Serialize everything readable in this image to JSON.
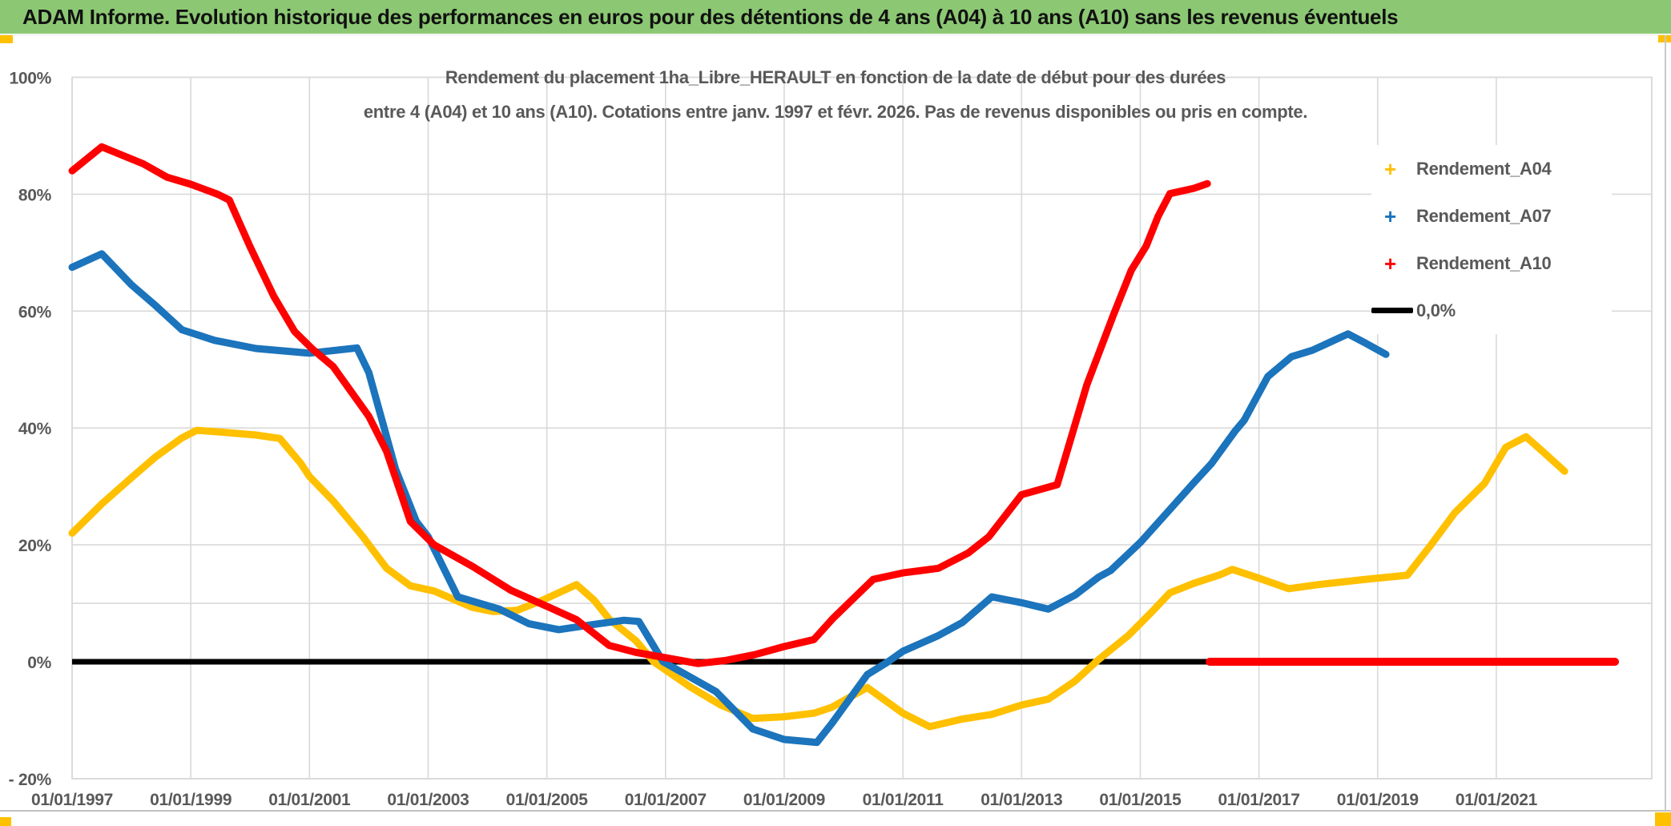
{
  "header": {
    "title": "ADAM Informe. Evolution historique des performances en euros pour des détentions de 4 ans (A04) à 10 ans (A10) sans les revenus éventuels",
    "bg_color": "#8CC873"
  },
  "chart": {
    "title_line1": "Rendement du placement 1ha_Libre_HERAULT en fonction de la date de début pour des durées",
    "title_line2": "entre 4 (A04) et 10 ans (A10). Cotations entre janv. 1997 et févr. 2026. Pas de revenus disponibles ou pris en compte.",
    "legend": {
      "items": [
        {
          "label": "Rendement_A04",
          "color": "#FFC000",
          "marker": "plus",
          "marker_glyph": "+"
        },
        {
          "label": "Rendement_A07",
          "color": "#1B74BC",
          "marker": "plus",
          "marker_glyph": "+"
        },
        {
          "label": "Rendement_A10",
          "color": "#FF0000",
          "marker": "plus",
          "marker_glyph": "+"
        },
        {
          "label": "0,0%",
          "color": "#000000",
          "marker": "line",
          "marker_glyph": ""
        }
      ]
    }
  },
  "chart_data": {
    "type": "line",
    "title": "Rendement du placement 1ha_Libre_HERAULT en fonction de la date de début pour des durées entre 4 (A04) et 10 ans (A10). Cotations entre janv. 1997 et févr. 2026. Pas de revenus disponibles ou pris en compte.",
    "x_axis": {
      "min": 1997.0,
      "max": 2023.6,
      "tick_years": [
        1997,
        1999,
        2001,
        2003,
        2005,
        2007,
        2009,
        2011,
        2013,
        2015,
        2017,
        2019,
        2021
      ],
      "tick_labels": [
        "01/01/1997",
        "01/01/1999",
        "01/01/2001",
        "01/01/2003",
        "01/01/2005",
        "01/01/2007",
        "01/01/2009",
        "01/01/2011",
        "01/01/2013",
        "01/01/2015",
        "01/01/2017",
        "01/01/2019",
        "01/01/2021"
      ]
    },
    "y_axis": {
      "min": -20,
      "max": 100,
      "tick_values": [
        100,
        80,
        60,
        40,
        20,
        0,
        -20
      ],
      "tick_labels": [
        "100%",
        "80%",
        "60%",
        "40%",
        "20%",
        "0%",
        "- 20%"
      ],
      "gridline_values": [
        100,
        80,
        60,
        40,
        20,
        10,
        -20
      ],
      "grid_on": true
    },
    "zero_line": {
      "label": "0,0%",
      "color": "#000000",
      "x_start": 1997.0,
      "x_end": 2016.2,
      "value": 0
    },
    "series": [
      {
        "name": "Rendement_A04",
        "color": "#FFC000",
        "points": [
          [
            1997.0,
            22
          ],
          [
            1997.5,
            27
          ],
          [
            1998.0,
            31.5
          ],
          [
            1998.4,
            35
          ],
          [
            1998.85,
            38.3
          ],
          [
            1999.1,
            39.6
          ],
          [
            1999.5,
            39.3
          ],
          [
            2000.1,
            38.8
          ],
          [
            2000.5,
            38.2
          ],
          [
            2000.85,
            34
          ],
          [
            2001.0,
            31.7
          ],
          [
            2001.4,
            27.5
          ],
          [
            2001.9,
            21.4
          ],
          [
            2002.3,
            16
          ],
          [
            2002.7,
            13
          ],
          [
            2003.1,
            12.1
          ],
          [
            2003.75,
            9.3
          ],
          [
            2004.1,
            8.6
          ],
          [
            2004.5,
            8.8
          ],
          [
            2004.9,
            10.4
          ],
          [
            2005.5,
            13.2
          ],
          [
            2005.8,
            10.5
          ],
          [
            2006.05,
            7.3
          ],
          [
            2006.5,
            3.6
          ],
          [
            2006.8,
            0
          ],
          [
            2007.4,
            -4.2
          ],
          [
            2007.93,
            -7.4
          ],
          [
            2008.47,
            -9.7
          ],
          [
            2009.0,
            -9.4
          ],
          [
            2009.5,
            -8.8
          ],
          [
            2009.8,
            -7.8
          ],
          [
            2010.4,
            -4.4
          ],
          [
            2011.0,
            -8.8
          ],
          [
            2011.45,
            -11.1
          ],
          [
            2012.0,
            -9.8
          ],
          [
            2012.5,
            -9.0
          ],
          [
            2013.0,
            -7.4
          ],
          [
            2013.45,
            -6.4
          ],
          [
            2013.9,
            -3.3
          ],
          [
            2014.3,
            0.4
          ],
          [
            2014.8,
            4.5
          ],
          [
            2015.2,
            8.6
          ],
          [
            2015.5,
            11.8
          ],
          [
            2015.9,
            13.4
          ],
          [
            2016.35,
            14.9
          ],
          [
            2016.55,
            15.8
          ],
          [
            2017.0,
            14.3
          ],
          [
            2017.5,
            12.5
          ],
          [
            2018.0,
            13.2
          ],
          [
            2018.8,
            14.1
          ],
          [
            2019.5,
            14.8
          ],
          [
            2019.9,
            20
          ],
          [
            2020.3,
            25.5
          ],
          [
            2020.8,
            30.5
          ],
          [
            2021.16,
            36.7
          ],
          [
            2021.5,
            38.5
          ],
          [
            2021.8,
            35.8
          ],
          [
            2022.15,
            32.6
          ]
        ]
      },
      {
        "name": "Rendement_A07",
        "color": "#1B74BC",
        "points": [
          [
            1997.0,
            67.5
          ],
          [
            1997.5,
            69.8
          ],
          [
            1998.0,
            64.5
          ],
          [
            1998.4,
            61
          ],
          [
            1998.85,
            56.8
          ],
          [
            1999.4,
            55
          ],
          [
            2000.1,
            53.6
          ],
          [
            2001.0,
            52.8
          ],
          [
            2001.8,
            53.7
          ],
          [
            2002.0,
            49.5
          ],
          [
            2002.45,
            33
          ],
          [
            2002.8,
            24
          ],
          [
            2003.0,
            21.4
          ],
          [
            2003.5,
            11.1
          ],
          [
            2004.2,
            9.0
          ],
          [
            2004.7,
            6.5
          ],
          [
            2005.2,
            5.5
          ],
          [
            2005.8,
            6.4
          ],
          [
            2006.3,
            7.1
          ],
          [
            2006.55,
            6.9
          ],
          [
            2006.96,
            0
          ],
          [
            2007.85,
            -5.1
          ],
          [
            2008.47,
            -11.5
          ],
          [
            2009.0,
            -13.3
          ],
          [
            2009.55,
            -13.8
          ],
          [
            2009.8,
            -10.6
          ],
          [
            2010.4,
            -2.2
          ],
          [
            2010.75,
            0
          ],
          [
            2011.0,
            1.8
          ],
          [
            2011.6,
            4.5
          ],
          [
            2012.0,
            6.7
          ],
          [
            2012.5,
            11.1
          ],
          [
            2013.0,
            10.1
          ],
          [
            2013.45,
            9.0
          ],
          [
            2013.9,
            11.4
          ],
          [
            2014.3,
            14.5
          ],
          [
            2014.5,
            15.6
          ],
          [
            2015.0,
            20.4
          ],
          [
            2015.45,
            25.5
          ],
          [
            2015.9,
            30.6
          ],
          [
            2016.2,
            33.9
          ],
          [
            2016.6,
            39.5
          ],
          [
            2016.75,
            41.3
          ],
          [
            2017.15,
            48.8
          ],
          [
            2017.55,
            52.2
          ],
          [
            2017.9,
            53.3
          ],
          [
            2018.5,
            56.1
          ],
          [
            2018.8,
            54.5
          ],
          [
            2019.14,
            52.6
          ]
        ]
      },
      {
        "name": "Rendement_A10",
        "color": "#FF0000",
        "points": [
          [
            1997.0,
            84
          ],
          [
            1997.5,
            88.1
          ],
          [
            1998.2,
            85.2
          ],
          [
            1998.6,
            82.9
          ],
          [
            1999.0,
            81.7
          ],
          [
            1999.45,
            80
          ],
          [
            1999.65,
            79
          ],
          [
            2000.0,
            71
          ],
          [
            2000.4,
            62.5
          ],
          [
            2000.75,
            56.5
          ],
          [
            2001.05,
            53.5
          ],
          [
            2001.4,
            50.5
          ],
          [
            2002.0,
            42
          ],
          [
            2002.3,
            36
          ],
          [
            2002.7,
            24
          ],
          [
            2003.0,
            21
          ],
          [
            2003.1,
            20
          ],
          [
            2003.75,
            16.3
          ],
          [
            2004.4,
            12.2
          ],
          [
            2005.0,
            9.5
          ],
          [
            2005.5,
            7.2
          ],
          [
            2006.05,
            2.8
          ],
          [
            2006.5,
            1.6
          ],
          [
            2007.0,
            0.7
          ],
          [
            2007.55,
            -0.3
          ],
          [
            2008.0,
            0.2
          ],
          [
            2008.5,
            1.2
          ],
          [
            2009.0,
            2.6
          ],
          [
            2009.5,
            3.8
          ],
          [
            2009.82,
            7.4
          ],
          [
            2010.5,
            14.1
          ],
          [
            2011.0,
            15.2
          ],
          [
            2011.6,
            16.0
          ],
          [
            2012.1,
            18.6
          ],
          [
            2012.45,
            21.4
          ],
          [
            2013.0,
            28.6
          ],
          [
            2013.6,
            30.3
          ],
          [
            2014.1,
            47.4
          ],
          [
            2014.55,
            59.4
          ],
          [
            2014.85,
            67.0
          ],
          [
            2015.1,
            71.1
          ],
          [
            2015.3,
            76.2
          ],
          [
            2015.5,
            80.1
          ],
          [
            2015.9,
            81.0
          ],
          [
            2016.13,
            81.8
          ]
        ],
        "zero_tail": [
          [
            2016.17,
            0
          ],
          [
            2023.0,
            0
          ]
        ]
      }
    ],
    "legend_position": "right-inside",
    "colors": {
      "gridline": "#D9D9D9",
      "axis_text": "#595959",
      "plot_border": "#D2D2D2"
    }
  }
}
